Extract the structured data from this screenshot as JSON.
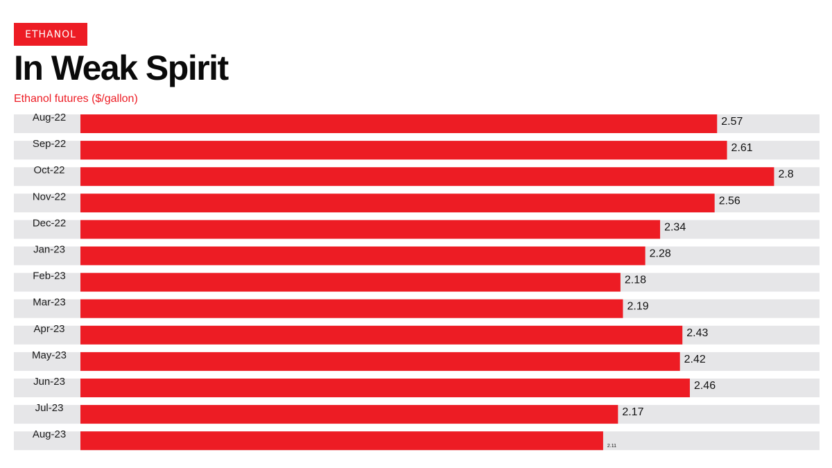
{
  "header": {
    "tag": "ETHANOL",
    "title": "In Weak Spirit"
  },
  "chart_data": {
    "type": "bar",
    "orientation": "horizontal",
    "title": "In Weak Spirit",
    "subtitle": "Ethanol futures ($/gallon)",
    "categories": [
      "Aug-22",
      "Sep-22",
      "Oct-22",
      "Nov-22",
      "Dec-22",
      "Jan-23",
      "Feb-23",
      "Mar-23",
      "Apr-23",
      "May-23",
      "Jun-23",
      "Jul-23",
      "Aug-23"
    ],
    "values": [
      2.57,
      2.61,
      2.8,
      2.56,
      2.34,
      2.28,
      2.18,
      2.19,
      2.43,
      2.42,
      2.46,
      2.17,
      2.11
    ],
    "value_labels": [
      "2.57",
      "2.61",
      "2.8",
      "2.56",
      "2.34",
      "2.28",
      "2.18",
      "2.19",
      "2.43",
      "2.42",
      "2.46",
      "2.17",
      "2.11"
    ],
    "xlim": [
      0,
      3.15
    ],
    "grid": false,
    "legend": "none",
    "colors": {
      "bar": "#ed1c24",
      "track": "#e6e6e8",
      "tag": "#ed1c24",
      "subtitle": "#ed1c24"
    }
  }
}
